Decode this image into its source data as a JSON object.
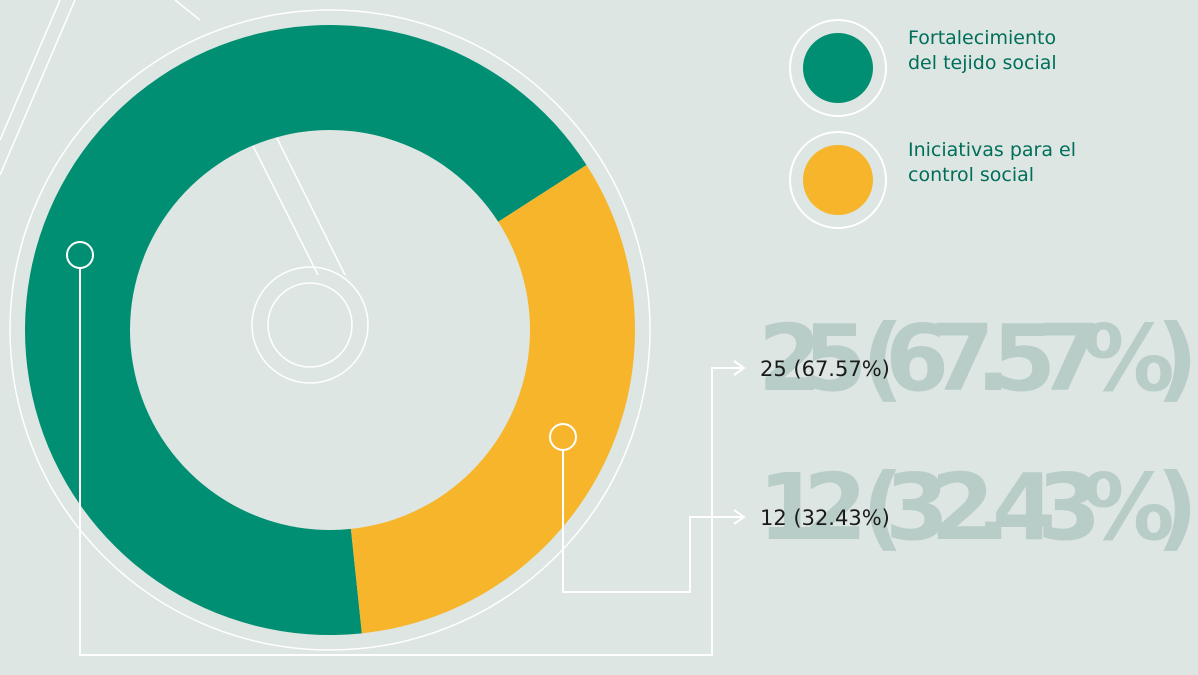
{
  "chart_data": {
    "type": "donut",
    "categories": [
      "Fortalecimiento del tejido social",
      "Iniciativas para el control social"
    ],
    "values": [
      25,
      12
    ],
    "value_labels": [
      "25 (67.57%)",
      "12 (32.43%)"
    ],
    "colors": [
      "#008f72",
      "#f7b52c"
    ]
  }
}
